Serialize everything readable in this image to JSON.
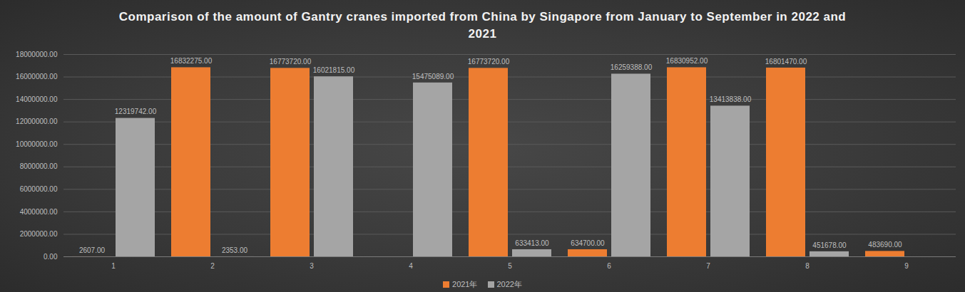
{
  "chart_data": {
    "type": "bar",
    "title": "Comparison of the amount of Gantry cranes imported from China by Singapore from January to September in 2022 and 2021",
    "categories": [
      "1",
      "2",
      "3",
      "4",
      "5",
      "6",
      "7",
      "8",
      "9"
    ],
    "series": [
      {
        "name": "2021年",
        "color": "#ed7d31",
        "values": [
          2607,
          16832275,
          16773720,
          null,
          16773720,
          634700,
          16830952,
          16801470,
          483690
        ],
        "value_labels": [
          "2607.00",
          "16832275.00",
          "16773720.00",
          null,
          "16773720.00",
          "634700.00",
          "16830952.00",
          "16801470.00",
          "483690.00"
        ]
      },
      {
        "name": "2022年",
        "color": "#a5a5a5",
        "values": [
          12319742,
          2353,
          16021815,
          15475089,
          633413,
          16259388,
          13413838,
          451678,
          null
        ],
        "value_labels": [
          "12319742.00",
          "2353.00",
          "16021815.00",
          "15475089.00",
          "633413.00",
          "16259388.00",
          "13413838.00",
          "451678.00",
          null
        ]
      }
    ],
    "ylim": [
      0,
      18000000
    ],
    "yticks": [
      {
        "value": 0,
        "label": "0.00"
      },
      {
        "value": 2000000,
        "label": "2000000.00"
      },
      {
        "value": 4000000,
        "label": "4000000.00"
      },
      {
        "value": 6000000,
        "label": "6000000.00"
      },
      {
        "value": 8000000,
        "label": "8000000.00"
      },
      {
        "value": 10000000,
        "label": "10000000.00"
      },
      {
        "value": 12000000,
        "label": "12000000.00"
      },
      {
        "value": 14000000,
        "label": "14000000.00"
      },
      {
        "value": 16000000,
        "label": "16000000.00"
      },
      {
        "value": 18000000,
        "label": "18000000.00"
      }
    ],
    "grid": true,
    "data_labels": true,
    "legend": "bottom"
  }
}
